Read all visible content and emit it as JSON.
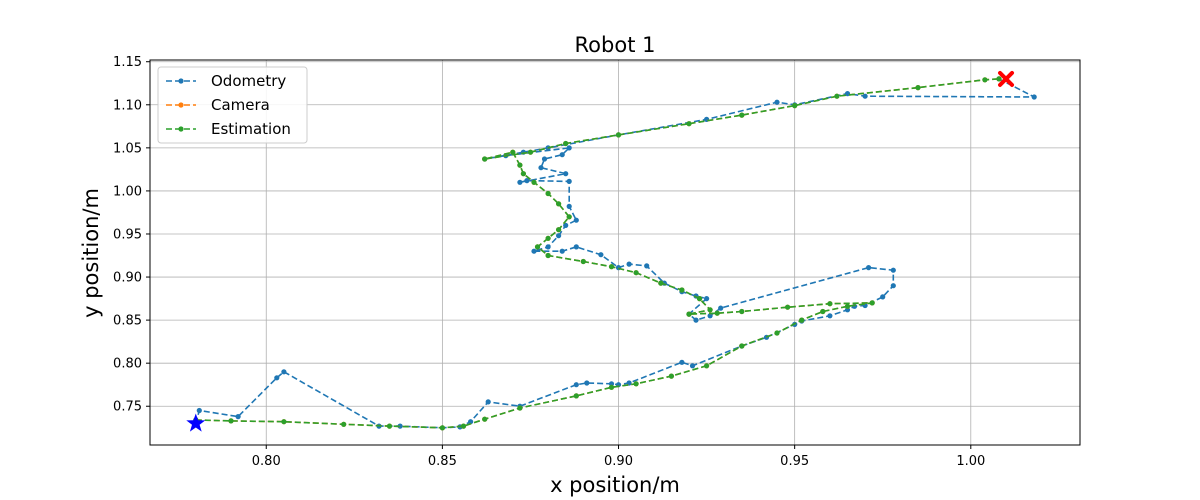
{
  "chart_data": {
    "type": "line",
    "title": "Robot 1",
    "xlabel": "x position/m",
    "ylabel": "y position/m",
    "xlim": [
      0.767,
      1.031
    ],
    "ylim": [
      0.705,
      1.152
    ],
    "xticks": [
      0.8,
      0.85,
      0.9,
      0.95,
      1.0
    ],
    "xtick_labels": [
      "0.80",
      "0.85",
      "0.90",
      "0.95",
      "1.00"
    ],
    "yticks": [
      0.75,
      0.8,
      0.85,
      0.9,
      0.95,
      1.0,
      1.05,
      1.1,
      1.15
    ],
    "ytick_labels": [
      "0.75",
      "0.80",
      "0.85",
      "0.90",
      "0.95",
      "1.00",
      "1.05",
      "1.10",
      "1.15"
    ],
    "grid": true,
    "legend_position": "top-left",
    "series": [
      {
        "name": "Odometry",
        "color": "#1f77b4",
        "points": [
          [
            0.78,
            0.73
          ],
          [
            0.781,
            0.745
          ],
          [
            0.792,
            0.738
          ],
          [
            0.803,
            0.783
          ],
          [
            0.805,
            0.79
          ],
          [
            0.832,
            0.727
          ],
          [
            0.838,
            0.727
          ],
          [
            0.85,
            0.725
          ],
          [
            0.855,
            0.726
          ],
          [
            0.858,
            0.732
          ],
          [
            0.863,
            0.755
          ],
          [
            0.872,
            0.75
          ],
          [
            0.888,
            0.775
          ],
          [
            0.891,
            0.777
          ],
          [
            0.898,
            0.776
          ],
          [
            0.9,
            0.775
          ],
          [
            0.903,
            0.777
          ],
          [
            0.918,
            0.801
          ],
          [
            0.921,
            0.797
          ],
          [
            0.935,
            0.82
          ],
          [
            0.942,
            0.83
          ],
          [
            0.95,
            0.845
          ],
          [
            0.952,
            0.849
          ],
          [
            0.96,
            0.855
          ],
          [
            0.965,
            0.862
          ],
          [
            0.967,
            0.866
          ],
          [
            0.97,
            0.867
          ],
          [
            0.975,
            0.877
          ],
          [
            0.978,
            0.89
          ],
          [
            0.978,
            0.908
          ],
          [
            0.971,
            0.911
          ],
          [
            0.929,
            0.864
          ],
          [
            0.926,
            0.855
          ],
          [
            0.922,
            0.85
          ],
          [
            0.92,
            0.857
          ],
          [
            0.925,
            0.875
          ],
          [
            0.922,
            0.878
          ],
          [
            0.918,
            0.883
          ],
          [
            0.913,
            0.893
          ],
          [
            0.908,
            0.913
          ],
          [
            0.903,
            0.915
          ],
          [
            0.9,
            0.911
          ],
          [
            0.895,
            0.926
          ],
          [
            0.888,
            0.935
          ],
          [
            0.884,
            0.93
          ],
          [
            0.876,
            0.93
          ],
          [
            0.88,
            0.935
          ],
          [
            0.883,
            0.948
          ],
          [
            0.885,
            0.96
          ],
          [
            0.888,
            0.966
          ],
          [
            0.886,
            0.982
          ],
          [
            0.886,
            1.011
          ],
          [
            0.874,
            1.012
          ],
          [
            0.872,
            1.01
          ],
          [
            0.885,
            1.02
          ],
          [
            0.878,
            1.027
          ],
          [
            0.879,
            1.037
          ],
          [
            0.884,
            1.042
          ],
          [
            0.886,
            1.05
          ],
          [
            0.868,
            1.041
          ],
          [
            0.862,
            1.037
          ],
          [
            0.873,
            1.045
          ],
          [
            0.88,
            1.05
          ],
          [
            0.9,
            1.065
          ],
          [
            0.925,
            1.083
          ],
          [
            0.945,
            1.103
          ],
          [
            0.95,
            1.1
          ],
          [
            0.965,
            1.113
          ],
          [
            0.97,
            1.11
          ],
          [
            1.018,
            1.109
          ],
          [
            1.008,
            1.13
          ]
        ]
      },
      {
        "name": "Camera",
        "color": "#ff7f0e",
        "points": [
          [
            0.78,
            0.734
          ],
          [
            0.79,
            0.733
          ],
          [
            0.805,
            0.732
          ],
          [
            0.822,
            0.729
          ],
          [
            0.835,
            0.727
          ],
          [
            0.85,
            0.725
          ],
          [
            0.856,
            0.727
          ],
          [
            0.862,
            0.735
          ],
          [
            0.872,
            0.748
          ],
          [
            0.888,
            0.762
          ],
          [
            0.898,
            0.772
          ],
          [
            0.905,
            0.776
          ],
          [
            0.915,
            0.785
          ],
          [
            0.925,
            0.797
          ],
          [
            0.935,
            0.82
          ],
          [
            0.945,
            0.835
          ],
          [
            0.952,
            0.85
          ],
          [
            0.958,
            0.86
          ],
          [
            0.965,
            0.866
          ],
          [
            0.972,
            0.87
          ],
          [
            0.96,
            0.869
          ],
          [
            0.948,
            0.865
          ],
          [
            0.935,
            0.86
          ],
          [
            0.928,
            0.858
          ],
          [
            0.92,
            0.857
          ],
          [
            0.926,
            0.862
          ],
          [
            0.923,
            0.875
          ],
          [
            0.918,
            0.885
          ],
          [
            0.912,
            0.893
          ],
          [
            0.905,
            0.905
          ],
          [
            0.898,
            0.912
          ],
          [
            0.89,
            0.918
          ],
          [
            0.88,
            0.925
          ],
          [
            0.877,
            0.935
          ],
          [
            0.88,
            0.945
          ],
          [
            0.883,
            0.955
          ],
          [
            0.886,
            0.97
          ],
          [
            0.883,
            0.985
          ],
          [
            0.88,
            0.997
          ],
          [
            0.876,
            1.01
          ],
          [
            0.873,
            1.02
          ],
          [
            0.872,
            1.03
          ],
          [
            0.87,
            1.045
          ],
          [
            0.862,
            1.037
          ],
          [
            0.875,
            1.045
          ],
          [
            0.885,
            1.055
          ],
          [
            0.9,
            1.065
          ],
          [
            0.92,
            1.078
          ],
          [
            0.935,
            1.088
          ],
          [
            0.95,
            1.099
          ],
          [
            0.962,
            1.11
          ],
          [
            0.985,
            1.12
          ],
          [
            1.004,
            1.129
          ],
          [
            1.008,
            1.13
          ]
        ]
      },
      {
        "name": "Estimation",
        "color": "#2ca02c",
        "points": [
          [
            0.78,
            0.734
          ],
          [
            0.79,
            0.733
          ],
          [
            0.805,
            0.732
          ],
          [
            0.822,
            0.729
          ],
          [
            0.835,
            0.727
          ],
          [
            0.85,
            0.725
          ],
          [
            0.856,
            0.727
          ],
          [
            0.862,
            0.735
          ],
          [
            0.872,
            0.748
          ],
          [
            0.888,
            0.762
          ],
          [
            0.898,
            0.772
          ],
          [
            0.905,
            0.776
          ],
          [
            0.915,
            0.785
          ],
          [
            0.925,
            0.797
          ],
          [
            0.935,
            0.82
          ],
          [
            0.945,
            0.835
          ],
          [
            0.952,
            0.85
          ],
          [
            0.958,
            0.86
          ],
          [
            0.965,
            0.866
          ],
          [
            0.972,
            0.87
          ],
          [
            0.96,
            0.869
          ],
          [
            0.948,
            0.865
          ],
          [
            0.935,
            0.86
          ],
          [
            0.928,
            0.858
          ],
          [
            0.92,
            0.857
          ],
          [
            0.926,
            0.862
          ],
          [
            0.923,
            0.875
          ],
          [
            0.918,
            0.885
          ],
          [
            0.912,
            0.893
          ],
          [
            0.905,
            0.905
          ],
          [
            0.898,
            0.912
          ],
          [
            0.89,
            0.918
          ],
          [
            0.88,
            0.925
          ],
          [
            0.877,
            0.935
          ],
          [
            0.88,
            0.945
          ],
          [
            0.883,
            0.955
          ],
          [
            0.886,
            0.97
          ],
          [
            0.883,
            0.985
          ],
          [
            0.88,
            0.997
          ],
          [
            0.876,
            1.01
          ],
          [
            0.873,
            1.02
          ],
          [
            0.872,
            1.03
          ],
          [
            0.87,
            1.045
          ],
          [
            0.862,
            1.037
          ],
          [
            0.875,
            1.045
          ],
          [
            0.885,
            1.055
          ],
          [
            0.9,
            1.065
          ],
          [
            0.92,
            1.078
          ],
          [
            0.935,
            1.088
          ],
          [
            0.95,
            1.099
          ],
          [
            0.962,
            1.11
          ],
          [
            0.985,
            1.12
          ],
          [
            1.004,
            1.129
          ],
          [
            1.008,
            1.13
          ]
        ]
      }
    ],
    "markers": [
      {
        "name": "start",
        "shape": "star",
        "color": "#0000ff",
        "x": 0.78,
        "y": 0.73
      },
      {
        "name": "end",
        "shape": "x",
        "color": "#ff0000",
        "x": 1.01,
        "y": 1.13
      }
    ]
  }
}
